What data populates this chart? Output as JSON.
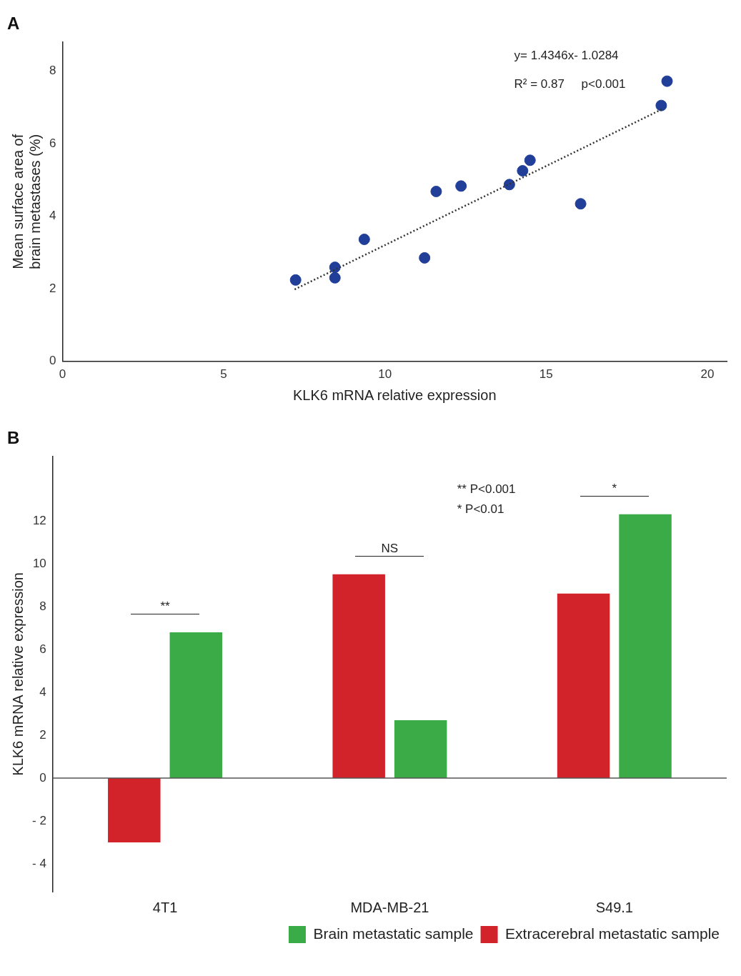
{
  "chart_data": [
    {
      "type": "scatter",
      "title": "A",
      "xlabel": "KLK6 mRNA relative expression",
      "ylabel": "Mean surface area of brain metastases (%)",
      "xlim": [
        0,
        20.6
      ],
      "ylim": [
        0,
        8.8
      ],
      "xticks": [
        0,
        5,
        10,
        15,
        20
      ],
      "yticks": [
        0,
        2,
        4,
        6,
        8
      ],
      "grid": false,
      "legend": false,
      "series": [
        {
          "marker": "circle",
          "color": "#213f99",
          "x": [
            7.23,
            8.45,
            8.45,
            9.36,
            11.23,
            11.59,
            12.36,
            13.86,
            14.27,
            14.5,
            16.07,
            18.57,
            18.75
          ],
          "values": [
            2.24,
            2.59,
            2.3,
            3.36,
            2.85,
            4.68,
            4.83,
            4.87,
            5.25,
            5.54,
            4.34,
            7.05,
            7.72
          ]
        },
        {
          "type": "line",
          "line_style": "dotted",
          "color": "#333333",
          "x": [
            7.2,
            18.6
          ],
          "values": [
            1.98,
            6.95
          ]
        }
      ],
      "annotations": [
        "y= 1.4346x- 1.0284",
        "R² = 0.87     p<0.001"
      ]
    },
    {
      "type": "bar",
      "title": "B",
      "ylabel": "KLK6 mRNA relative expression",
      "categories": [
        "4T1",
        "MDA-MB-21",
        "S49.1"
      ],
      "ylim": [
        -5.3,
        15
      ],
      "yticks": [
        {
          "value": -4,
          "label": "- 4"
        },
        {
          "value": -2,
          "label": "- 2"
        },
        0,
        2,
        4,
        6,
        8,
        10,
        12
      ],
      "grid": false,
      "legend": "bottom right",
      "series": [
        {
          "name": "Extracerebral metastatic sample",
          "color": "#d2232a",
          "values": [
            -3.0,
            9.5,
            8.6
          ]
        },
        {
          "name": "Brain metastatic sample",
          "color": "#3aab47",
          "values": [
            6.8,
            2.7,
            12.3
          ]
        }
      ],
      "ref_lines": [
        {
          "axis": "y",
          "value": 0,
          "color": "#555555"
        }
      ],
      "annotations": [
        "**",
        "NS",
        "*",
        "** P<0.001",
        "* P<0.01"
      ]
    }
  ]
}
